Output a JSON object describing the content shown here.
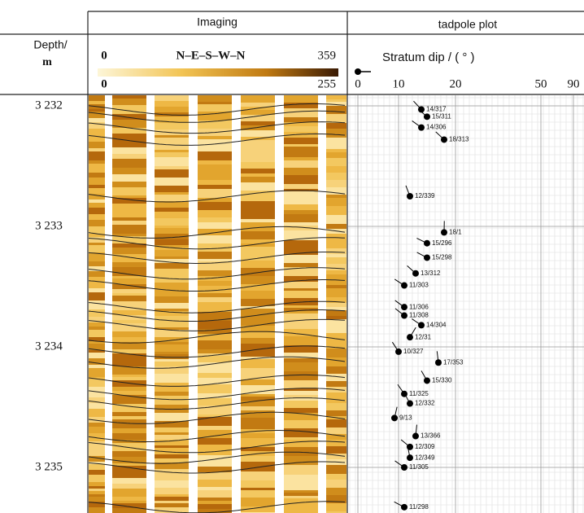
{
  "chart_data": {
    "type": "tadpole",
    "depth_header": [
      "Depth/",
      "m"
    ],
    "image_title": "Imaging",
    "plot_title": "tadpole plot",
    "colorbar": {
      "azimuth_ticks": [
        0,
        359
      ],
      "azimuth_label": "N–E–S–W–N",
      "amplitude_ticks": [
        0,
        255
      ]
    },
    "xlabel": "Stratum dip / ( ° )",
    "xlim": [
      0,
      90
    ],
    "xticks": [
      0,
      10,
      20,
      50,
      90
    ],
    "ylim": [
      3231.92,
      3235.38
    ],
    "yticks": [
      {
        "value": 3232,
        "label": "3 232"
      },
      {
        "value": 3233,
        "label": "3 233"
      },
      {
        "value": 3234,
        "label": "3 234"
      },
      {
        "value": 3235,
        "label": "3 235"
      }
    ],
    "grid": true,
    "color": "#000000",
    "x": [
      14,
      15,
      14,
      18,
      12,
      18,
      15,
      15,
      13,
      11,
      11,
      11,
      14,
      12,
      10,
      17,
      15,
      11,
      12,
      9,
      13,
      12,
      12,
      11,
      11
    ],
    "values": [
      3232.03,
      3232.09,
      3232.18,
      3232.28,
      3232.75,
      3233.05,
      3233.14,
      3233.26,
      3233.39,
      3233.49,
      3233.67,
      3233.74,
      3233.82,
      3233.92,
      3234.04,
      3234.13,
      3234.28,
      3234.39,
      3234.47,
      3234.59,
      3234.74,
      3234.83,
      3234.92,
      3235.0,
      3235.33
    ],
    "azimuths": [
      317,
      311,
      306,
      313,
      339,
      1,
      296,
      298,
      312,
      303,
      306,
      308,
      304,
      31,
      327,
      353,
      330,
      325,
      332,
      13,
      366,
      309,
      349,
      305,
      298
    ],
    "value_labels": [
      "14/317",
      "15/311",
      "14/306",
      "18/313",
      "12/339",
      "18/1",
      "15/296",
      "15/298",
      "13/312",
      "11/303",
      "11/306",
      "11/308",
      "14/304",
      "12/31",
      "10/327",
      "17/353",
      "15/330",
      "11/325",
      "12/332",
      "9/13",
      "13/366",
      "12/309",
      "12/349",
      "11/305",
      "11/298"
    ]
  }
}
